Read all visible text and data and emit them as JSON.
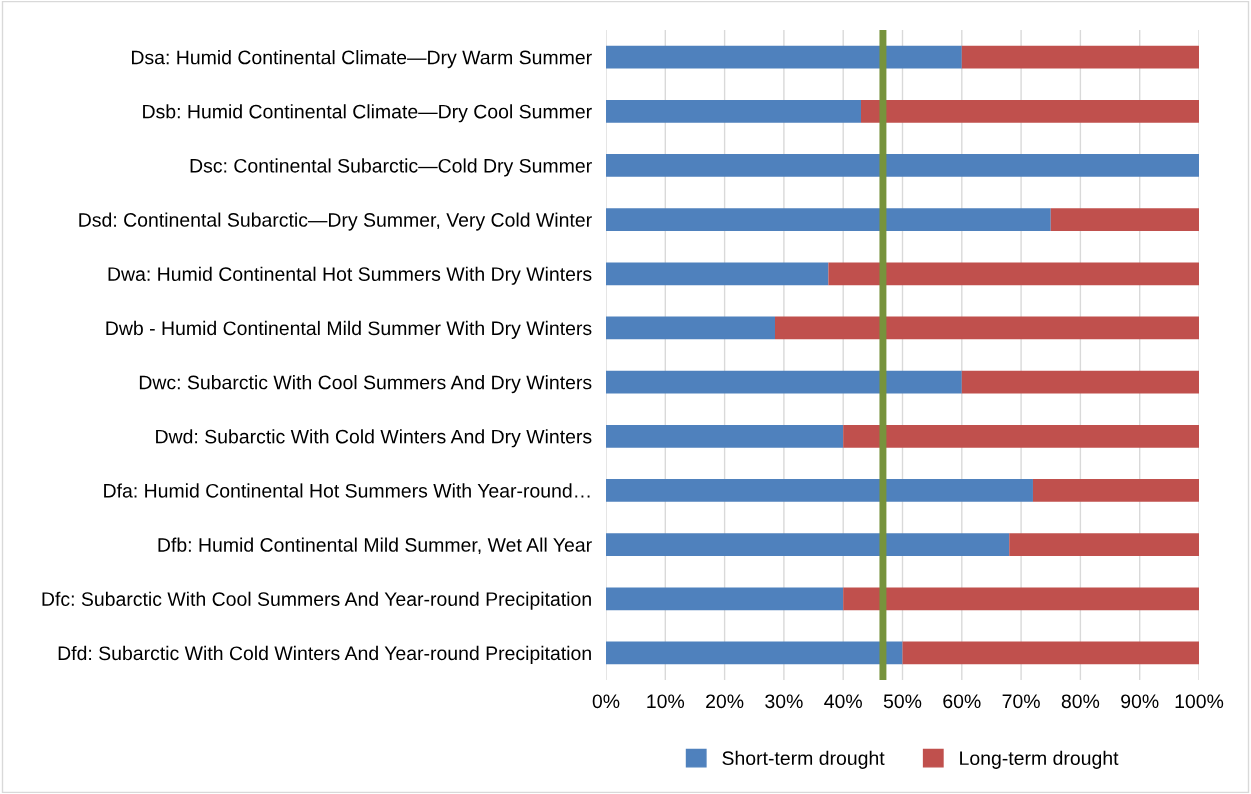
{
  "chart_data": {
    "type": "bar",
    "orientation": "horizontal",
    "stacked": true,
    "categories": [
      "Dsa: Humid Continental Climate—Dry Warm Summer",
      "Dsb: Humid Continental Climate—Dry Cool Summer",
      "Dsc: Continental Subarctic—Cold Dry Summer",
      "Dsd: Continental Subarctic—Dry Summer, Very Cold Winter",
      "Dwa: Humid Continental Hot Summers With Dry Winters",
      "Dwb - Humid Continental Mild Summer With Dry Winters",
      "Dwc: Subarctic With Cool Summers And Dry Winters",
      "Dwd: Subarctic With Cold Winters And Dry Winters",
      "Dfa: Humid Continental Hot Summers With Year-round…",
      "Dfb: Humid Continental Mild Summer, Wet All Year",
      "Dfc: Subarctic With Cool Summers And Year-round Precipitation",
      "Dfd: Subarctic With Cold Winters And Year-round Precipitation"
    ],
    "series": [
      {
        "name": "Short-term drought",
        "color": "#4f81bd",
        "values": [
          60,
          43,
          100,
          75,
          37.5,
          28.5,
          60,
          40,
          72,
          68,
          40,
          50
        ]
      },
      {
        "name": "Long-term drought",
        "color": "#c0504d",
        "values": [
          40,
          57,
          0,
          25,
          62.5,
          71.5,
          40,
          60,
          28,
          32,
          60,
          50
        ]
      }
    ],
    "xlim": [
      0,
      100
    ],
    "xticks": [
      {
        "value": 0,
        "label": "0%"
      },
      {
        "value": 10,
        "label": "10%"
      },
      {
        "value": 20,
        "label": "20%"
      },
      {
        "value": 30,
        "label": "30%"
      },
      {
        "value": 40,
        "label": "40%"
      },
      {
        "value": 50,
        "label": "50%"
      },
      {
        "value": 60,
        "label": "60%"
      },
      {
        "value": 70,
        "label": "70%"
      },
      {
        "value": 80,
        "label": "80%"
      },
      {
        "value": 90,
        "label": "90%"
      },
      {
        "value": 100,
        "label": "100%"
      }
    ],
    "ref_lines": [
      {
        "axis": "x",
        "value": 46.7,
        "label": null,
        "color": "#77933c"
      }
    ],
    "grid": "x",
    "legend": "bottom"
  }
}
